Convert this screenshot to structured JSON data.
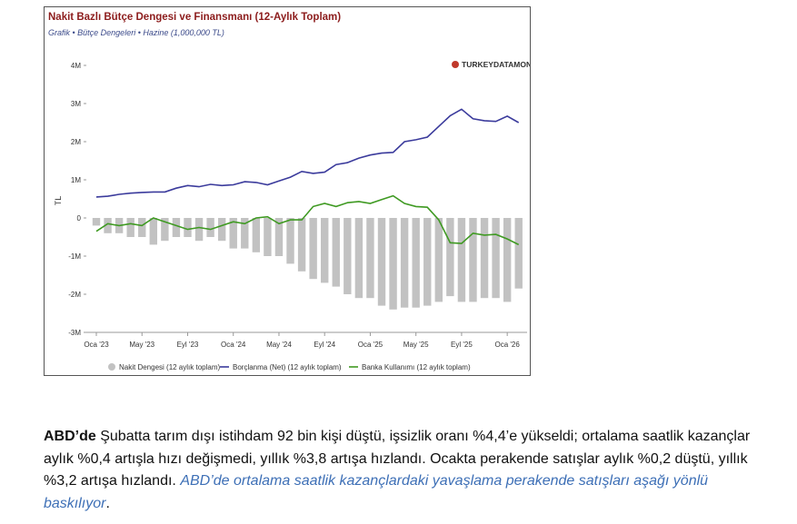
{
  "chart_data": {
    "type": "combo",
    "title": "Nakit Bazlı Bütçe Dengesi ve Finansmanı (12-Aylık Toplam)",
    "subtitle": "Grafik • Bütçe Dengeleri • Hazine (1,000,000 TL)",
    "watermark": "TURKEYDATAMONITOR",
    "y_label": "TL",
    "categories": [
      "Oca '23",
      null,
      null,
      null,
      "May '23",
      null,
      null,
      null,
      "Eyl '23",
      null,
      null,
      null,
      "Oca '24",
      null,
      null,
      null,
      "May '24",
      null,
      null,
      null,
      "Eyl '24",
      null,
      null,
      null,
      "Oca '25",
      null,
      null,
      null,
      "May '25",
      null,
      null,
      null,
      "Eyl '25",
      null,
      null,
      null,
      "Oca '26",
      null
    ],
    "series": [
      {
        "name": "Nakit Dengesi (12 aylık toplam)",
        "type": "bar",
        "color": "#c2c2c2",
        "values": [
          -200000,
          -400000,
          -400000,
          -500000,
          -500000,
          -700000,
          -600000,
          -500000,
          -500000,
          -600000,
          -500000,
          -600000,
          -800000,
          -800000,
          -900000,
          -1000000,
          -1000000,
          -1200000,
          -1400000,
          -1600000,
          -1700000,
          -1800000,
          -2000000,
          -2100000,
          -2100000,
          -2300000,
          -2400000,
          -2350000,
          -2350000,
          -2300000,
          -2200000,
          -2050000,
          -2200000,
          -2200000,
          -2100000,
          -2100000,
          -2200000,
          -1850000
        ]
      },
      {
        "name": "Borçlanma (Net) (12 aylık toplam)",
        "type": "line",
        "color": "#3b3b9c",
        "values": [
          550000,
          570000,
          620000,
          650000,
          670000,
          680000,
          680000,
          780000,
          850000,
          820000,
          880000,
          850000,
          870000,
          950000,
          930000,
          870000,
          970000,
          1070000,
          1220000,
          1170000,
          1200000,
          1400000,
          1450000,
          1570000,
          1650000,
          1700000,
          1720000,
          2000000,
          2050000,
          2120000,
          2400000,
          2680000,
          2850000,
          2600000,
          2550000,
          2530000,
          2670000,
          2500000
        ]
      },
      {
        "name": "Banka Kullanımı (12 aylık toplam)",
        "type": "line",
        "color": "#3f9a22",
        "values": [
          -350000,
          -150000,
          -200000,
          -150000,
          -200000,
          0,
          -100000,
          -200000,
          -300000,
          -250000,
          -300000,
          -200000,
          -100000,
          -150000,
          0,
          30000,
          -150000,
          -50000,
          -50000,
          300000,
          380000,
          300000,
          400000,
          430000,
          380000,
          480000,
          580000,
          380000,
          300000,
          280000,
          -50000,
          -650000,
          -670000,
          -400000,
          -450000,
          -430000,
          -550000,
          -700000
        ]
      }
    ],
    "ylim": [
      -3000000,
      4000000
    ],
    "yticks": [
      {
        "value": -3000000,
        "label": "-3M"
      },
      {
        "value": -2000000,
        "label": "-2M"
      },
      {
        "value": -1000000,
        "label": "-1M"
      },
      0,
      {
        "value": 1000000,
        "label": "1M"
      },
      {
        "value": 2000000,
        "label": "2M"
      },
      {
        "value": 3000000,
        "label": "3M"
      },
      {
        "value": 4000000,
        "label": "4M"
      }
    ],
    "grid": false,
    "legend": "bottom"
  },
  "paragraph": {
    "bold": "ABD’de",
    "text": " Şubatta tarım dışı istihdam 92 bin kişi düştü, işsizlik oranı %4,4’e yükseldi; ortalama saatlik kazançlar aylık %0,4 artışla hızı değişmedi, yıllık %3,8 artışa hızlandı. Ocakta perakende satışlar aylık %0,2 düştü, yıllık %3,2 artışa hızlandı. ",
    "italic": "ABD’de ortalama saatlik kazançlardaki yavaşlama perakende satışları aşağı yönlü baskılıyor",
    "end": "."
  }
}
